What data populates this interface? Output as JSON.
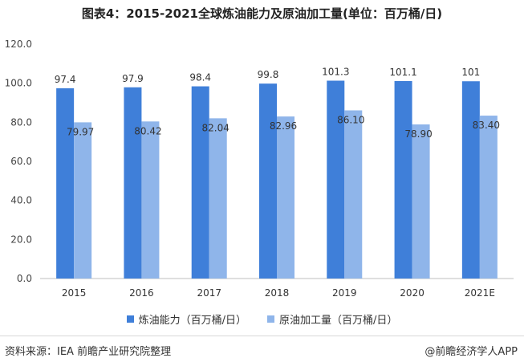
{
  "chart_data": {
    "type": "bar",
    "title": "图表4：2015-2021全球炼油能力及原油加工量(单位：百万桶/日)",
    "categories": [
      "2015",
      "2016",
      "2017",
      "2018",
      "2019",
      "2020",
      "2021E"
    ],
    "series": [
      {
        "name": "炼油能力（百万桶/日）",
        "color": "#3f7fd9",
        "values": [
          97.4,
          97.9,
          98.4,
          99.8,
          101.3,
          101.1,
          101
        ],
        "labels": [
          "97.4",
          "97.9",
          "98.4",
          "99.8",
          "101.3",
          "101.1",
          "101"
        ]
      },
      {
        "name": "原油加工量（百万桶/日）",
        "color": "#8fb5ea",
        "values": [
          79.97,
          80.42,
          82.04,
          82.96,
          86.1,
          78.9,
          83.4
        ],
        "labels": [
          "79.97",
          "80.42",
          "82.04",
          "82.96",
          "86.10",
          "78.90",
          "83.40"
        ]
      }
    ],
    "ylim": [
      0,
      120
    ],
    "yticks": [
      "0.0",
      "20.0",
      "40.0",
      "60.0",
      "80.0",
      "100.0",
      "120.0"
    ],
    "legend_position": "bottom"
  },
  "footer": {
    "source": "资料来源：IEA 前瞻产业研究院整理",
    "brand": "@前瞻经济学人APP"
  },
  "watermark": "前瞻产业研究院"
}
